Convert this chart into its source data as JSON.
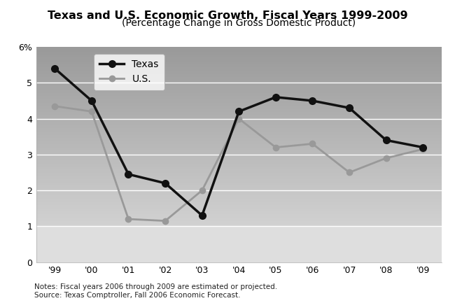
{
  "title": "Texas and U.S. Economic Growth, Fiscal Years 1999-2009",
  "subtitle": "(Percentage Change in Gross Domestic Product)",
  "years": [
    "'99",
    "'00",
    "'01",
    "'02",
    "'03",
    "'04",
    "'05",
    "'06",
    "'07",
    "'08",
    "'09"
  ],
  "texas": [
    5.4,
    4.5,
    2.45,
    2.2,
    1.3,
    4.2,
    4.6,
    4.5,
    4.3,
    3.4,
    3.2
  ],
  "us": [
    4.35,
    4.2,
    1.2,
    1.15,
    2.0,
    4.0,
    3.2,
    3.3,
    2.5,
    2.9,
    3.15
  ],
  "texas_color": "#111111",
  "us_color": "#999999",
  "ylim": [
    0,
    6
  ],
  "yticks": [
    0,
    1,
    2,
    3,
    4,
    5,
    6
  ],
  "ytick_labels": [
    "0",
    "1",
    "2",
    "3",
    "4",
    "5",
    "6%"
  ],
  "notes": "Notes: Fiscal years 2006 through 2009 are estimated or projected.\nSource: Texas Comptroller, Fall 2006 Economic Forecast.",
  "legend_texas": "Texas",
  "legend_us": "U.S.",
  "title_fontsize": 11.5,
  "subtitle_fontsize": 10,
  "axis_fontsize": 9,
  "notes_fontsize": 7.5,
  "grid_color": "#ffffff",
  "border_color": "#555555"
}
